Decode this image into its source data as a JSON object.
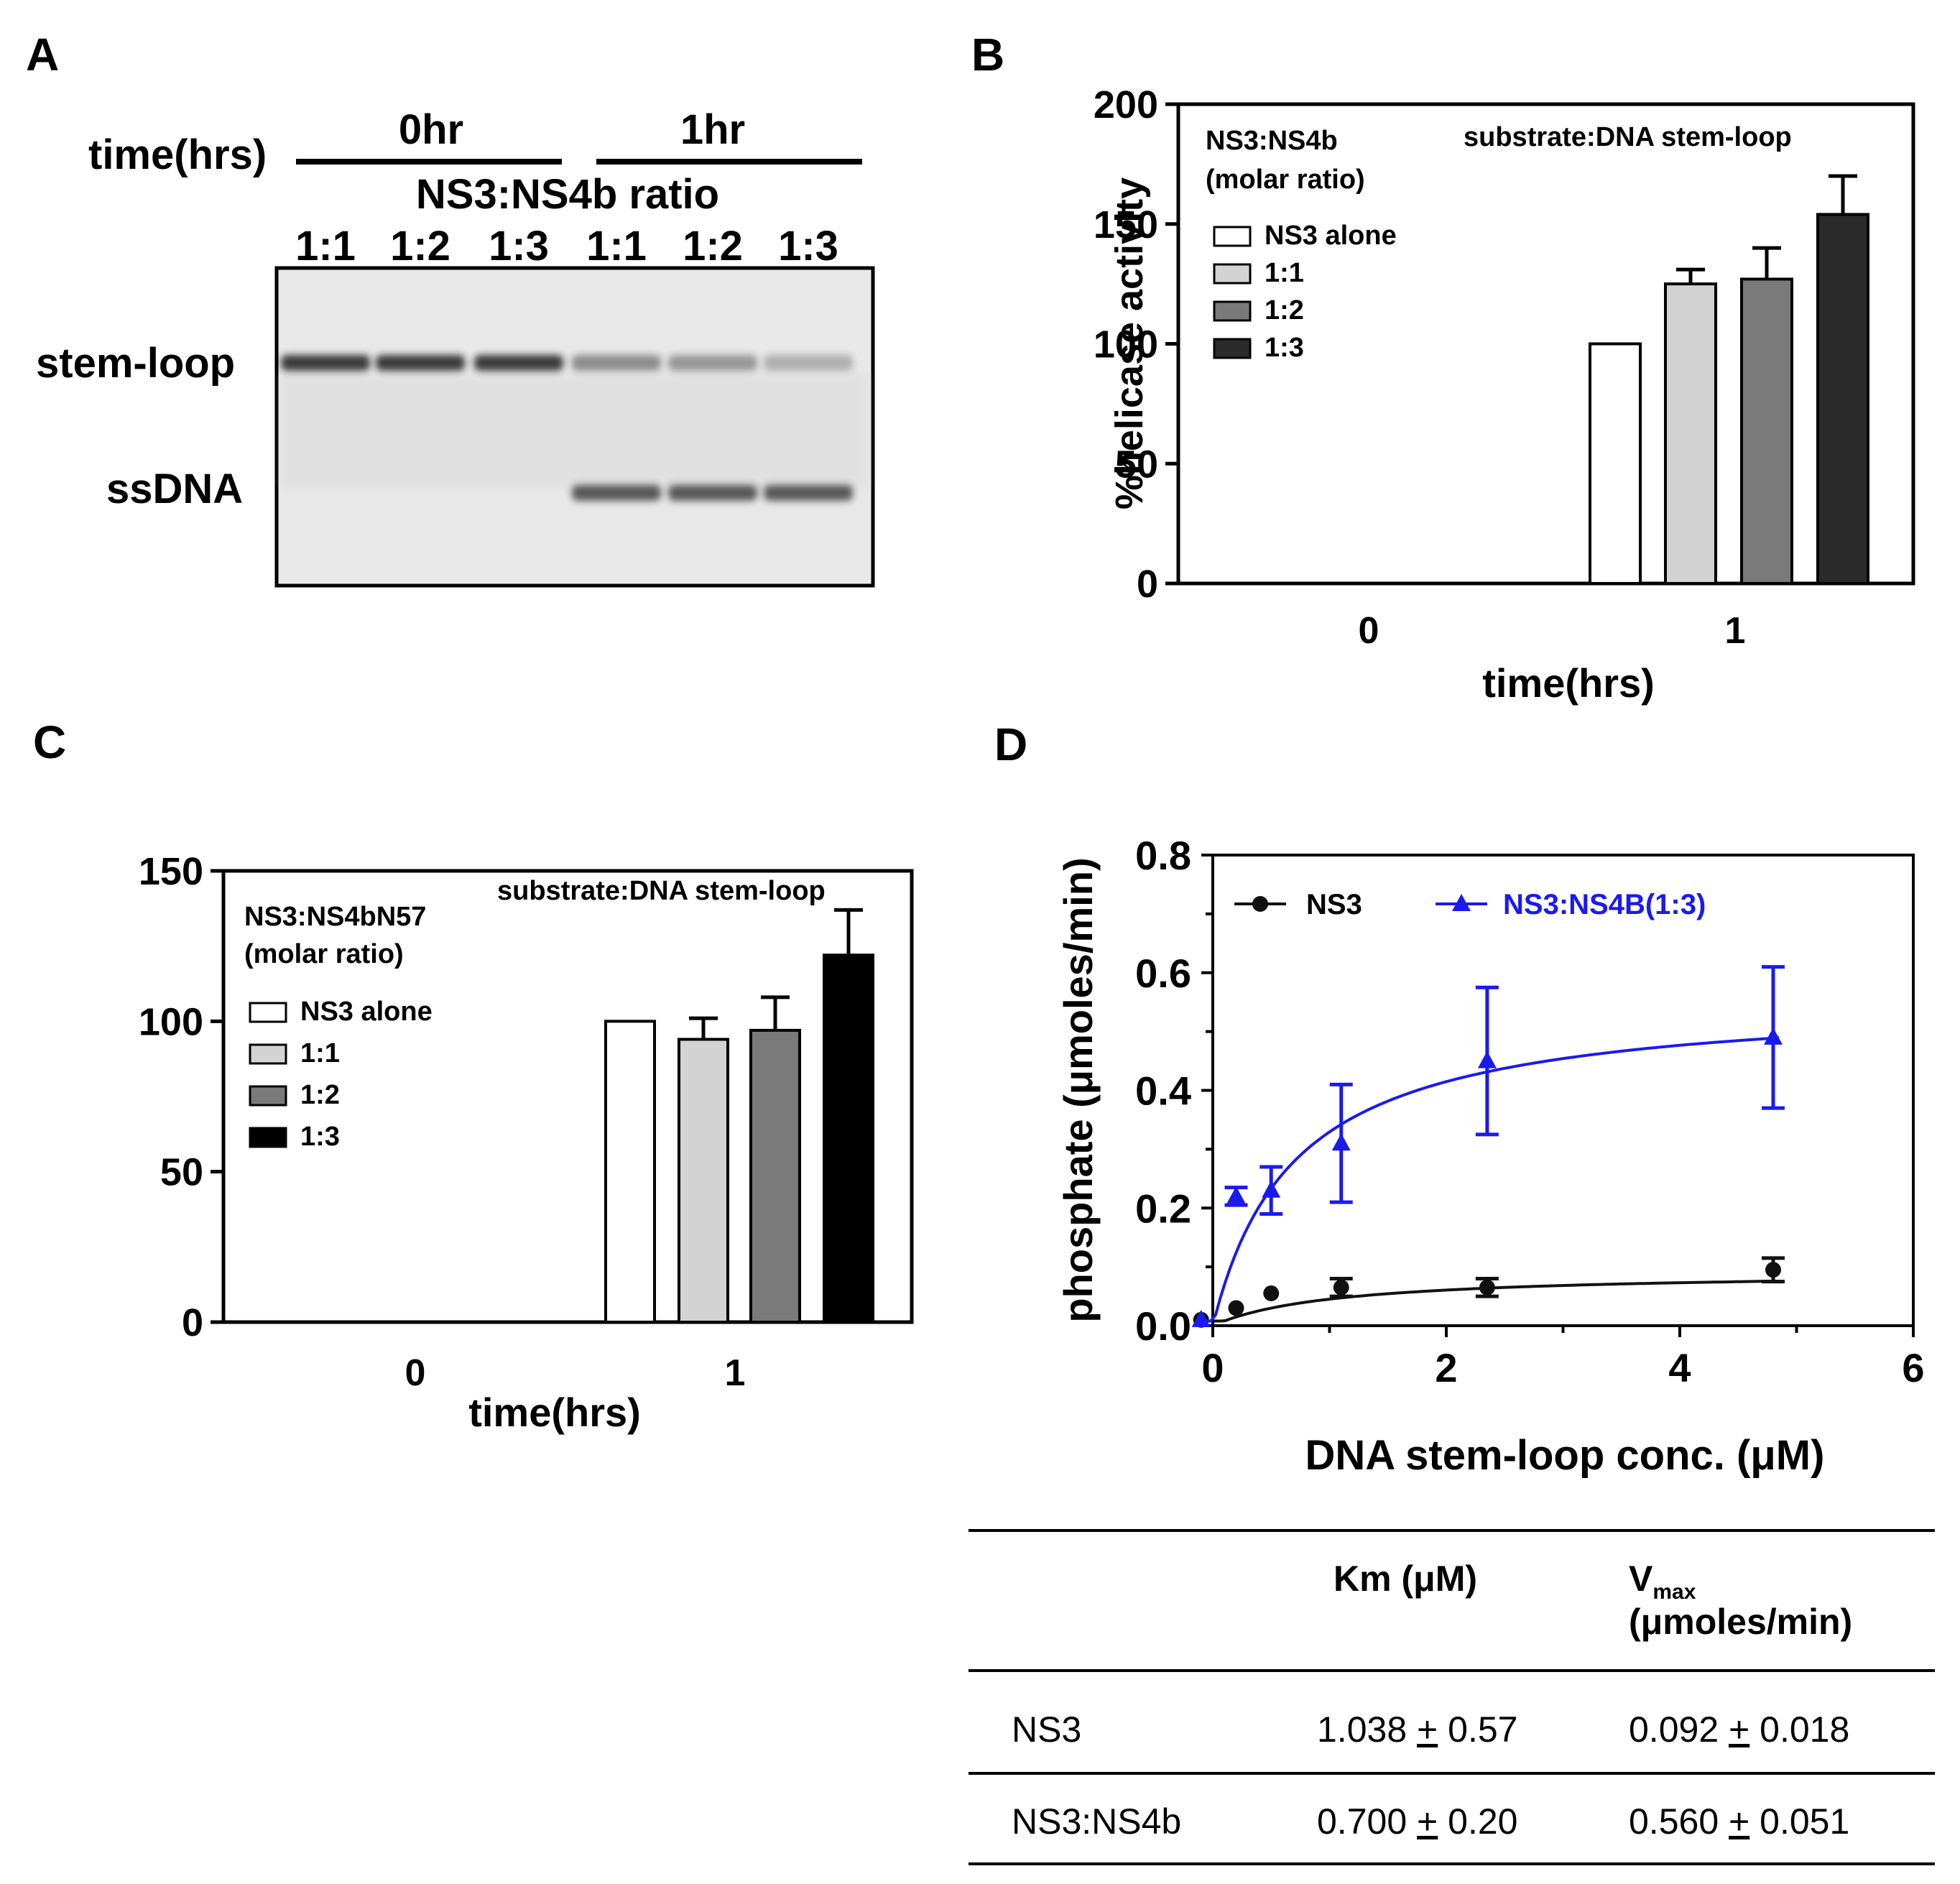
{
  "panels": {
    "A": "A",
    "B": "B",
    "C": "C",
    "D": "D"
  },
  "colors": {
    "ns3_alone": "#ffffff",
    "ratio_1_1": "#d3d3d3",
    "ratio_1_2": "#7a7a7a",
    "ratio_1_3_B": "#2b2b2b",
    "ratio_1_3_C": "#000000",
    "ns3_curve": "#111111",
    "ns4b_curve": "#1a1aee",
    "gel_background": "#e8e8e8"
  },
  "gel": {
    "time_label": "time(hrs)",
    "time_groups": [
      "0hr",
      "1hr"
    ],
    "ratio_title": "NS3:NS4b ratio",
    "lane_labels": [
      "1:1",
      "1:2",
      "1:3",
      "1:1",
      "1:2",
      "1:3"
    ],
    "band_labels": [
      "stem-loop",
      "ssDNA"
    ],
    "stem_loop_intensity": [
      0.85,
      0.85,
      0.85,
      0.45,
      0.4,
      0.28
    ],
    "ssdna_intensity": [
      0.0,
      0.0,
      0.0,
      0.7,
      0.7,
      0.7
    ]
  },
  "chart_data": [
    {
      "panel": "B",
      "type": "bar",
      "title": "",
      "xlabel": "time(hrs)",
      "ylabel": "%helicase activity",
      "ylim": [
        0,
        200
      ],
      "yticks": [
        0,
        50,
        100,
        150,
        200
      ],
      "categories": [
        "0",
        "1"
      ],
      "legend_title": "NS3:NS4b\n(molar ratio)",
      "legend_title_lines": [
        "NS3:NS4b",
        "(molar ratio)"
      ],
      "annotation": "substrate:DNA stem-loop",
      "series": [
        {
          "name": "NS3 alone",
          "values": [
            null,
            100
          ],
          "errors": [
            null,
            0
          ]
        },
        {
          "name": "1:1",
          "values": [
            null,
            125
          ],
          "errors": [
            null,
            6
          ]
        },
        {
          "name": "1:2",
          "values": [
            null,
            127
          ],
          "errors": [
            null,
            13
          ]
        },
        {
          "name": "1:3",
          "values": [
            null,
            154
          ],
          "errors": [
            null,
            16
          ]
        }
      ]
    },
    {
      "panel": "C",
      "type": "bar",
      "title": "",
      "xlabel": "time(hrs)",
      "ylabel": "",
      "ylim": [
        0,
        150
      ],
      "yticks": [
        0,
        50,
        100,
        150
      ],
      "categories": [
        "0",
        "1"
      ],
      "legend_title_lines": [
        "NS3:NS4bN57",
        "(molar ratio)"
      ],
      "annotation": "substrate:DNA stem-loop",
      "series": [
        {
          "name": "NS3 alone",
          "values": [
            null,
            100
          ],
          "errors": [
            null,
            0
          ]
        },
        {
          "name": "1:1",
          "values": [
            null,
            94
          ],
          "errors": [
            null,
            7
          ]
        },
        {
          "name": "1:2",
          "values": [
            null,
            97
          ],
          "errors": [
            null,
            11
          ]
        },
        {
          "name": "1:3",
          "values": [
            null,
            122
          ],
          "errors": [
            null,
            15
          ]
        }
      ]
    },
    {
      "panel": "D",
      "type": "scatter",
      "title": "",
      "xlabel": "DNA stem-loop conc. (μM)",
      "ylabel": "phosphate (μmoles/min)",
      "xlim": [
        0,
        6
      ],
      "ylim": [
        0,
        0.8
      ],
      "xticks": [
        0,
        2,
        4,
        6
      ],
      "yticks": [
        "0.0",
        "0.2",
        "0.4",
        "0.6",
        "0.8"
      ],
      "series": [
        {
          "name": "NS3",
          "marker": "circle",
          "x": [
            -0.1,
            0.2,
            0.5,
            1.1,
            2.35,
            4.8
          ],
          "y": [
            0.01,
            0.03,
            0.055,
            0.065,
            0.065,
            0.095
          ],
          "errors": [
            0,
            0,
            0,
            0.015,
            0.015,
            0.02
          ],
          "fit": {
            "km": 1.038,
            "vmax": 0.092
          }
        },
        {
          "name": "NS3:NS4B(1:3)",
          "marker": "triangle",
          "x": [
            -0.1,
            0.2,
            0.5,
            1.1,
            2.35,
            4.8
          ],
          "y": [
            0.01,
            0.22,
            0.23,
            0.31,
            0.45,
            0.49
          ],
          "errors": [
            0,
            0.015,
            0.04,
            0.1,
            0.125,
            0.12
          ],
          "fit": {
            "km": 0.7,
            "vmax": 0.56
          }
        }
      ]
    }
  ],
  "table": {
    "headers": [
      "",
      "Km (μM)",
      "V",
      "max",
      "(μmoles/min)"
    ],
    "rows": [
      {
        "name": "NS3",
        "km_val": "1.038",
        "km_pm": "+",
        "km_err": "0.57",
        "v_val": "0.092",
        "v_pm": "+",
        "v_err": "0.018"
      },
      {
        "name": "NS3:NS4b",
        "km_val": "0.700",
        "km_pm": "+",
        "km_err": "0.20",
        "v_val": "0.560",
        "v_pm": "+",
        "v_err": "0.051"
      }
    ]
  }
}
